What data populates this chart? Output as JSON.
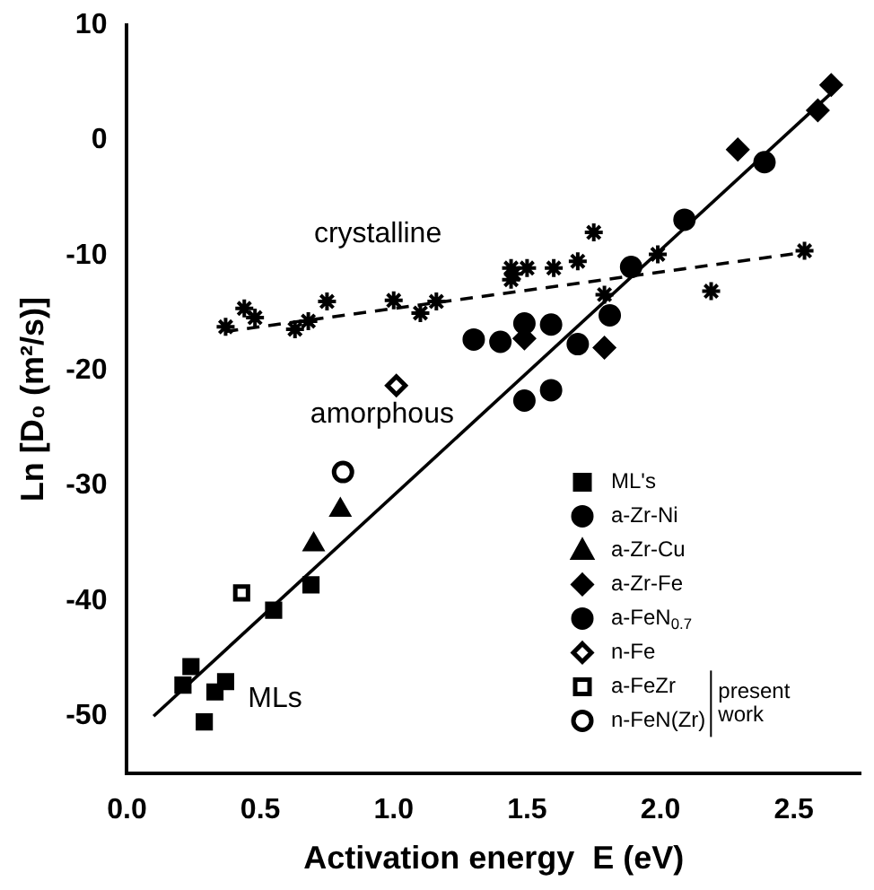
{
  "chart_data": {
    "type": "scatter",
    "xlabel": "Activation energy  E (eV)",
    "ylabel": "Ln [D₀ (m²/s)]",
    "xlim": [
      0,
      2.75
    ],
    "xticks": [
      {
        "value": 0,
        "label": "0.0"
      },
      {
        "value": 0.5,
        "label": "0.5"
      },
      {
        "value": 1,
        "label": "1.0"
      },
      {
        "value": 1.5,
        "label": "1.5"
      },
      {
        "value": 2,
        "label": "2.0"
      },
      {
        "value": 2.5,
        "label": "2.5"
      }
    ],
    "ylim": [
      -55,
      10
    ],
    "yticks": [
      -50,
      -40,
      -30,
      -20,
      -10,
      0,
      10
    ],
    "grid": false,
    "legend": "bottom right",
    "series": [
      {
        "name": "ML's",
        "color": "#000000",
        "marker": "square",
        "x": [
          0.24,
          0.21,
          0.29,
          0.33,
          0.37,
          0.55,
          0.69
        ],
        "values": [
          -45.7,
          -47.3,
          -50.5,
          -47.9,
          -47,
          -40.8,
          -38.6
        ]
      },
      {
        "name": "a-Zr-Ni",
        "color": "#000000",
        "marker": "circle",
        "x": [
          1.49,
          1.59,
          1.4,
          1.69,
          1.81,
          1.49,
          1.59,
          1.89,
          2.09,
          2.39
        ],
        "values": [
          -15.9,
          -16,
          -17.5,
          -17.7,
          -15.2,
          -22.6,
          -21.7,
          -11,
          -6.9,
          -1.9
        ]
      },
      {
        "name": "a-Zr-Cu",
        "color": "#000000",
        "marker": "triangle",
        "x": [
          0.7,
          0.8
        ],
        "values": [
          -35.1,
          -32.1
        ]
      },
      {
        "name": "a-Zr-Fe",
        "color": "#000000",
        "marker": "diamond",
        "x": [
          1.49,
          1.79,
          2.29,
          2.59,
          2.64
        ],
        "values": [
          -17.2,
          -18,
          -0.8,
          2.6,
          4.8
        ]
      },
      {
        "name": "a-FeN$_{0.7}$",
        "color": "#000000",
        "marker": "circle",
        "x": [
          1.3
        ],
        "values": [
          -17.3
        ]
      },
      {
        "name": "n-Fe",
        "color": "#ffffff",
        "marker": "diamond",
        "x": [
          1.01
        ],
        "values": [
          -21.3
        ]
      },
      {
        "name": "a-FeZr",
        "color": "#ffffff",
        "marker": "square",
        "x": [
          0.43
        ],
        "values": [
          -39.3
        ]
      },
      {
        "name": "n-FeN(Zr)",
        "color": "#ffffff",
        "marker": "circle",
        "x": [
          0.81
        ],
        "values": [
          -28.8
        ]
      },
      {
        "color": "#000000",
        "marker": "cross",
        "x": [
          0.37,
          0.44,
          0.48,
          0.63,
          0.68,
          1.0,
          1.45,
          1.79
        ],
        "values": [
          -16.2,
          -14.6,
          -15.4,
          -16.4,
          -15.7,
          -13.9,
          -11.6,
          -13.4
        ]
      },
      {
        "color": "#000000",
        "marker": "cross",
        "x": [
          1.1,
          1.16,
          1.44,
          1.75,
          1.99
        ],
        "values": [
          -15,
          -14,
          -12.1,
          -8,
          -9.9
        ]
      },
      {
        "color": "#000000",
        "marker": "cross",
        "x": [
          0.75,
          1.44,
          1.5,
          1.6,
          1.69,
          2.19,
          2.54
        ],
        "values": [
          -14,
          -11.1,
          -11.1,
          -11.1,
          -10.5,
          -13.1,
          -9.6
        ]
      },
      {
        "type": "line",
        "color": "#000000",
        "line_style": "solid",
        "marker": "none",
        "x": [
          0.1,
          2.65
        ],
        "values": [
          -50,
          4.3
        ]
      },
      {
        "type": "line",
        "color": "#000000",
        "line_style": "dashed",
        "marker": "none",
        "x": [
          0.37,
          2.55
        ],
        "values": [
          -16.6,
          -9.7
        ]
      }
    ],
    "annotations": [
      "crystalline",
      "amorphous",
      "MLs",
      "present work"
    ]
  }
}
